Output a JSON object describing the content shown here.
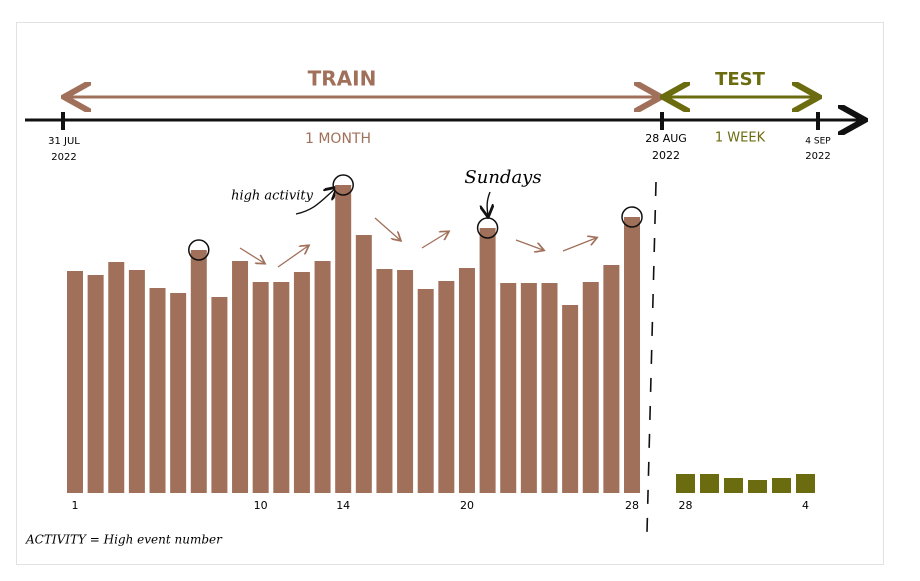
{
  "title_train": "TRAIN",
  "title_test": "TEST",
  "timeline": {
    "start": {
      "day": "31 JUL",
      "year": "2022"
    },
    "split": {
      "day": "28 AUG",
      "year": "2022"
    },
    "end": {
      "day": "4 SEP",
      "year": "2022"
    },
    "train_duration": "1 MONTH",
    "test_duration": "1 WEEK"
  },
  "train": {
    "categories": [
      "1",
      null,
      null,
      null,
      null,
      null,
      null,
      null,
      null,
      "10",
      null,
      null,
      null,
      "14",
      null,
      null,
      null,
      null,
      null,
      "20",
      null,
      null,
      null,
      null,
      null,
      null,
      null,
      "28"
    ],
    "values": [
      222,
      218,
      231,
      223,
      205,
      200,
      243,
      196,
      232,
      211,
      211,
      221,
      232,
      308,
      258,
      224,
      223,
      204,
      212,
      225,
      265,
      210,
      210,
      210,
      188,
      211,
      228,
      276
    ],
    "color": "#a0705a"
  },
  "test": {
    "categories": [
      "28",
      null,
      null,
      null,
      null,
      "4"
    ],
    "values": [
      19,
      19,
      15,
      13,
      15,
      19
    ],
    "color": "#6b6b10"
  },
  "annotations": {
    "high_activity": "high activity",
    "sundays": "Sundays"
  },
  "footnote": "ACTIVITY = High event number"
}
